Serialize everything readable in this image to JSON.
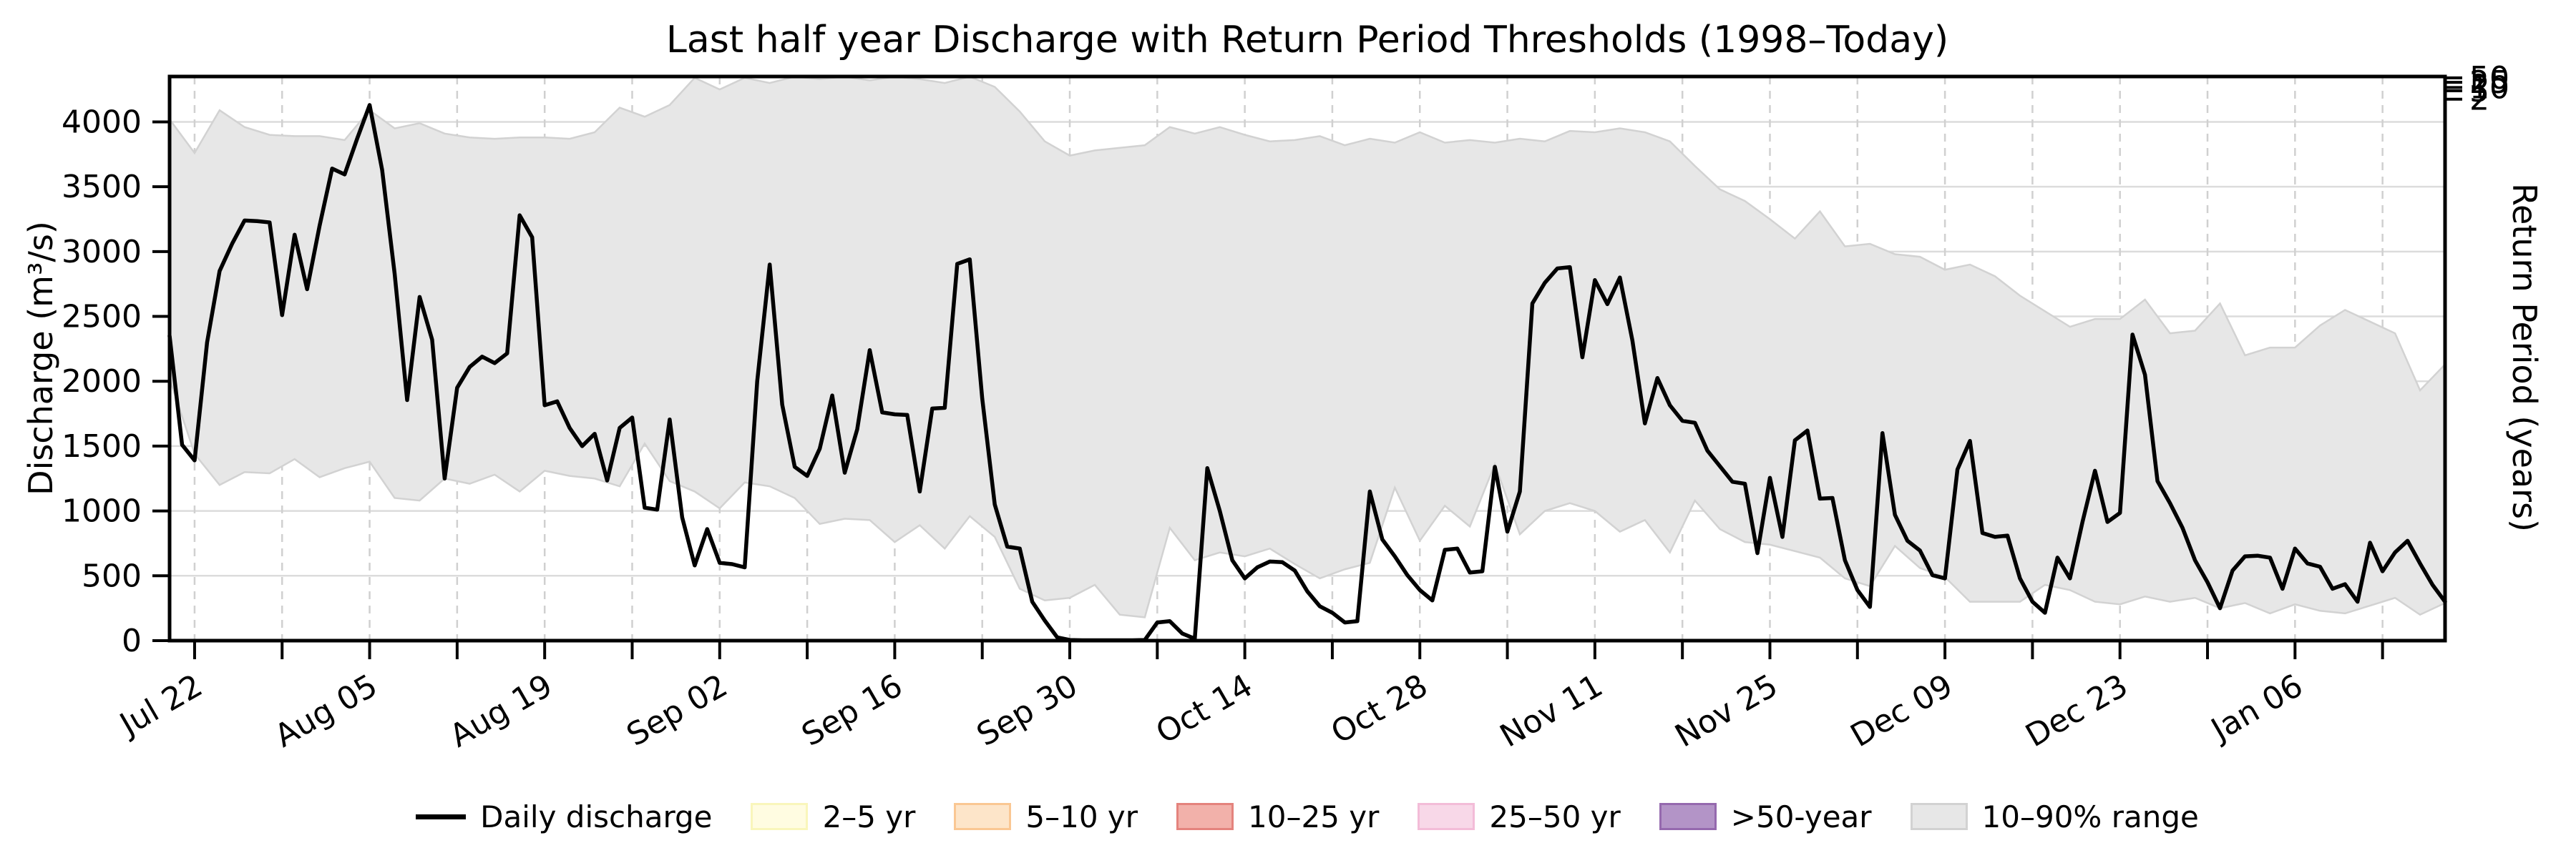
{
  "title": "Last half year Discharge with Return Period Thresholds (1998–Today)",
  "axes": {
    "y_left": {
      "label": "Discharge (m³/s)",
      "ticks": [
        0,
        500,
        1000,
        1500,
        2000,
        2500,
        3000,
        3500,
        4000
      ],
      "range": [
        0,
        4350
      ]
    },
    "y_right": {
      "label": "Return Period (years)",
      "tick_labels": [
        "50",
        "25",
        "10",
        "5",
        "2"
      ],
      "tick_discharge_values": [
        4340,
        4305,
        4265,
        4240,
        4175
      ]
    },
    "x_axis": {
      "major_tick_labels": [
        "Jul 22",
        "Aug 05",
        "Aug 19",
        "Sep 02",
        "Sep 16",
        "Sep 30",
        "Oct 14",
        "Oct 28",
        "Nov 11",
        "Nov 25",
        "Dec 09",
        "Dec 23",
        "Jan 06"
      ],
      "major_tick_interval_days": 14,
      "minor_tick_interval_days": 7,
      "label_rotation_deg": 30
    }
  },
  "legend": [
    {
      "label": "Daily discharge",
      "type": "line",
      "fill": "#000000",
      "edge": "#000000"
    },
    {
      "label": "2–5 yr",
      "type": "patch",
      "fill": "#fffce1",
      "edge": "#f9f6bb"
    },
    {
      "label": "5–10 yr",
      "type": "patch",
      "fill": "#fde5c9",
      "edge": "#fac793"
    },
    {
      "label": "10–25 yr",
      "type": "patch",
      "fill": "#f2b1aa",
      "edge": "#e4837d"
    },
    {
      "label": "25–50 yr",
      "type": "patch",
      "fill": "#f8d8e8",
      "edge": "#f3bcd8"
    },
    {
      "label": ">50-year",
      "type": "patch",
      "fill": "#b394c7",
      "edge": "#9569ae"
    },
    {
      "label": "10–90% range",
      "type": "patch",
      "fill": "#e7e7e7",
      "edge": "#d2d2d2"
    }
  ],
  "colors": {
    "line": "#000000",
    "band_fill": "#e7e7e7",
    "band_edge": "#d2d2d2",
    "grid_h": "#dcdcdc",
    "grid_v": "#d0d0d0",
    "spine": "#000000",
    "background": "#ffffff"
  },
  "chart_data": {
    "type": "line",
    "title": "Last half year Discharge with Return Period Thresholds (1998–Today)",
    "xlabel": "",
    "ylabel": "Discharge (m³/s)",
    "y2label": "Return Period (years)",
    "ylim": [
      0,
      4350
    ],
    "x_start": "Jul 20",
    "x_end": "Jan 18",
    "frequency": "daily",
    "series": [
      {
        "name": "Daily discharge",
        "values": [
          2350,
          1510,
          1390,
          2300,
          2850,
          3060,
          3240,
          3235,
          3225,
          2510,
          3130,
          2710,
          3200,
          3640,
          3595,
          3870,
          4130,
          3630,
          2830,
          1855,
          2650,
          2320,
          1250,
          1950,
          2110,
          2190,
          2140,
          2215,
          3280,
          3110,
          1815,
          1845,
          1640,
          1500,
          1595,
          1235,
          1640,
          1720,
          1025,
          1010,
          1705,
          950,
          580,
          860,
          600,
          590,
          565,
          2000,
          2900,
          1820,
          1340,
          1270,
          1480,
          1890,
          1295,
          1630,
          2240,
          1760,
          1745,
          1740,
          1150,
          1790,
          1795,
          2905,
          2940,
          1865,
          1050,
          725,
          710,
          300,
          155,
          25,
          5,
          3,
          3,
          3,
          3,
          3,
          5,
          140,
          150,
          55,
          15,
          1330,
          1000,
          620,
          480,
          565,
          610,
          605,
          540,
          380,
          265,
          215,
          140,
          150,
          1150,
          780,
          650,
          505,
          390,
          310,
          700,
          710,
          525,
          535,
          1340,
          840,
          1150,
          2600,
          2760,
          2870,
          2880,
          2185,
          2780,
          2595,
          2800,
          2315,
          1675,
          2025,
          1815,
          1695,
          1680,
          1465,
          1345,
          1225,
          1210,
          675,
          1255,
          800,
          1545,
          1620,
          1095,
          1100,
          620,
          390,
          260,
          1600,
          970,
          770,
          695,
          505,
          480,
          1320,
          1540,
          830,
          800,
          810,
          480,
          300,
          215,
          640,
          480,
          915,
          1310,
          915,
          985,
          2360,
          2050,
          1230,
          1060,
          870,
          620,
          450,
          250,
          540,
          650,
          655,
          640,
          400,
          710,
          595,
          570,
          400,
          435,
          300,
          755,
          535,
          680,
          770,
          595,
          430,
          300
        ]
      }
    ],
    "band": {
      "name": "10–90% range",
      "day_step": 2,
      "upper": [
        4020,
        3760,
        4090,
        3960,
        3900,
        3890,
        3890,
        3860,
        4090,
        3950,
        3990,
        3910,
        3880,
        3870,
        3880,
        3880,
        3870,
        3920,
        4110,
        4040,
        4130,
        4340,
        4250,
        4340,
        4300,
        4349,
        4330,
        4349,
        4320,
        4349,
        4330,
        4300,
        4349,
        4270,
        4080,
        3850,
        3740,
        3780,
        3800,
        3820,
        3960,
        3910,
        3960,
        3900,
        3850,
        3860,
        3890,
        3820,
        3870,
        3840,
        3920,
        3840,
        3860,
        3840,
        3870,
        3850,
        3930,
        3920,
        3950,
        3920,
        3850,
        3660,
        3480,
        3390,
        3250,
        3100,
        3310,
        3040,
        3060,
        2980,
        2960,
        2860,
        2900,
        2810,
        2660,
        2540,
        2420,
        2480,
        2480,
        2630,
        2370,
        2390,
        2600,
        2200,
        2260,
        2260,
        2430,
        2550,
        2460,
        2370,
        1930,
        2130
      ],
      "lower": [
        2020,
        1440,
        1200,
        1300,
        1290,
        1400,
        1260,
        1330,
        1380,
        1100,
        1080,
        1250,
        1210,
        1280,
        1150,
        1310,
        1270,
        1250,
        1190,
        1520,
        1230,
        1150,
        1020,
        1220,
        1190,
        1100,
        900,
        940,
        930,
        760,
        890,
        710,
        960,
        800,
        400,
        310,
        330,
        430,
        200,
        180,
        870,
        620,
        680,
        650,
        710,
        590,
        480,
        550,
        600,
        1180,
        770,
        1040,
        880,
        1360,
        820,
        1000,
        1060,
        1000,
        840,
        930,
        680,
        1080,
        860,
        760,
        740,
        690,
        640,
        480,
        420,
        730,
        560,
        490,
        300,
        300,
        300,
        430,
        390,
        300,
        280,
        340,
        300,
        330,
        250,
        290,
        210,
        280,
        230,
        210,
        270,
        330,
        200,
        290
      ]
    },
    "legend_entries": [
      "Daily discharge",
      "2–5 yr",
      "5–10 yr",
      "10–25 yr",
      "25–50 yr",
      ">50-year",
      "10–90% range"
    ],
    "legend_position": "bottom-center",
    "grid": "horizontal solid + vertical dashed (weekly)"
  }
}
